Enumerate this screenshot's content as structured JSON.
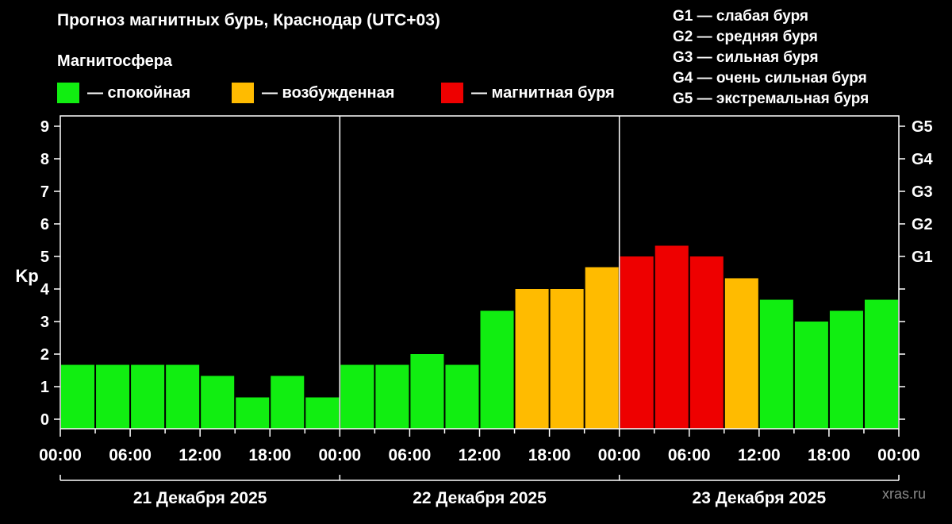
{
  "title": "Прогноз магнитных бурь, Краснодар (UTC+03)",
  "subtitle": "Магнитосфера",
  "legend": [
    {
      "label": "— спокойная",
      "color": "#11ee11"
    },
    {
      "label": "— возбужденная",
      "color": "#ffbb00"
    },
    {
      "label": "— магнитная буря",
      "color": "#ee0000"
    }
  ],
  "g_legend": [
    "G1 — слабая буря",
    "G2 — средняя буря",
    "G3 — сильная буря",
    "G4 — очень сильная буря",
    "G5 — экстремальная буря"
  ],
  "watermark": "xras.ru",
  "chart_data": {
    "type": "bar",
    "ylabel": "Kp",
    "ylim": [
      0,
      9
    ],
    "yticks": [
      "0",
      "1",
      "2",
      "3",
      "4",
      "5",
      "6",
      "7",
      "8",
      "9"
    ],
    "right_ticks": [
      {
        "label": "G1",
        "kp": 5
      },
      {
        "label": "G2",
        "kp": 6
      },
      {
        "label": "G3",
        "kp": 7
      },
      {
        "label": "G4",
        "kp": 8
      },
      {
        "label": "G5",
        "kp": 9
      }
    ],
    "xtick_labels": [
      "00:00",
      "06:00",
      "12:00",
      "18:00",
      "00:00",
      "06:00",
      "12:00",
      "18:00",
      "00:00",
      "06:00",
      "12:00",
      "18:00",
      "00:00"
    ],
    "days": [
      "21 Декабря 2025",
      "22 Декабря 2025",
      "23 Декабря 2025"
    ],
    "values": [
      1.67,
      1.67,
      1.67,
      1.67,
      1.33,
      0.67,
      1.33,
      0.67,
      1.67,
      1.67,
      2.0,
      1.67,
      3.33,
      4.0,
      4.0,
      4.67,
      5.0,
      5.33,
      5.0,
      4.33,
      3.67,
      3.0,
      3.33,
      3.67
    ],
    "levels": [
      "quiet",
      "quiet",
      "quiet",
      "quiet",
      "quiet",
      "quiet",
      "quiet",
      "quiet",
      "quiet",
      "quiet",
      "quiet",
      "quiet",
      "quiet",
      "active",
      "active",
      "active",
      "storm",
      "storm",
      "storm",
      "active",
      "quiet",
      "quiet",
      "quiet",
      "quiet"
    ],
    "colors": {
      "quiet": "#11ee11",
      "active": "#ffbb00",
      "storm": "#ee0000"
    }
  }
}
